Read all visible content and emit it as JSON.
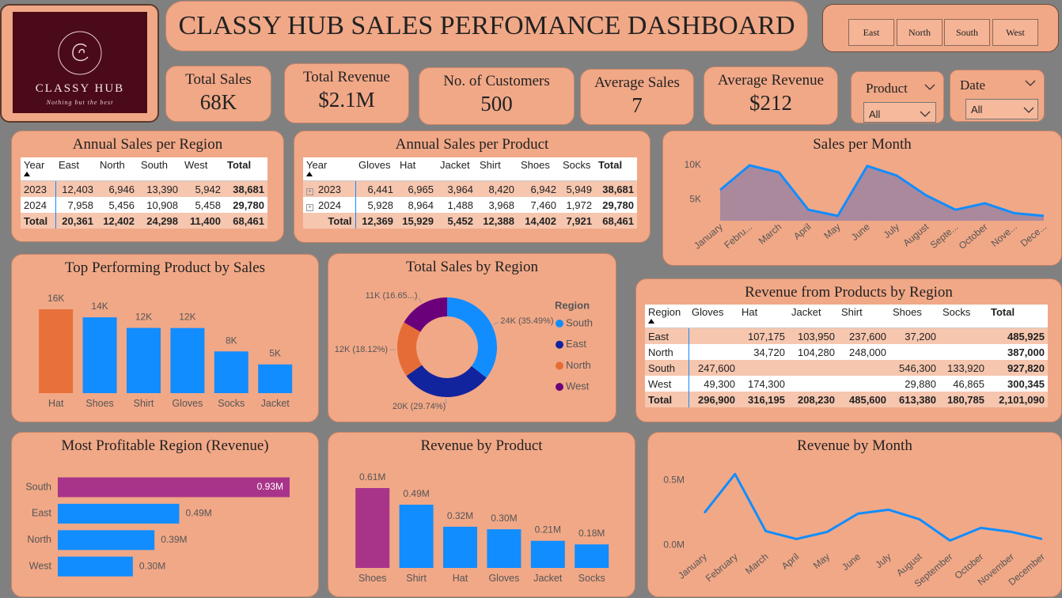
{
  "header": {
    "title": "CLASSY HUB SALES PERFOMANCE DASHBOARD",
    "logo_name": "CLASSY HUB",
    "logo_tagline": "Nothing but the best"
  },
  "region_buttons": [
    "East",
    "North",
    "South",
    "West"
  ],
  "kpis": [
    {
      "label": "Total Sales",
      "value": "68K"
    },
    {
      "label": "Total Revenue",
      "value": "$2.1M"
    },
    {
      "label": "No. of Customers",
      "value": "500"
    },
    {
      "label": "Average Sales",
      "value": "7"
    },
    {
      "label": "Average Revenue",
      "value": "$212"
    }
  ],
  "slicers": [
    {
      "label": "Product",
      "value": "All"
    },
    {
      "label": "Date",
      "value": "All"
    }
  ],
  "tables": [
    {
      "title": "Annual Sales per Region",
      "columns": [
        "Year",
        "East",
        "North",
        "South",
        "West",
        "Total"
      ],
      "rows": [
        [
          "2023",
          "12,403",
          "6,946",
          "13,390",
          "5,942",
          "38,681"
        ],
        [
          "2024",
          "7,958",
          "5,456",
          "10,908",
          "5,458",
          "29,780"
        ],
        [
          "Total",
          "20,361",
          "12,402",
          "24,298",
          "11,400",
          "68,461"
        ]
      ]
    },
    {
      "title": "Annual Sales per Product",
      "columns": [
        "Year",
        "Gloves",
        "Hat",
        "Jacket",
        "Shirt",
        "Shoes",
        "Socks",
        "Total"
      ],
      "rows": [
        [
          "2023",
          "6,441",
          "6,965",
          "3,964",
          "8,420",
          "6,942",
          "5,949",
          "38,681"
        ],
        [
          "2024",
          "5,928",
          "8,964",
          "1,488",
          "3,968",
          "7,460",
          "1,972",
          "29,780"
        ],
        [
          "Total",
          "12,369",
          "15,929",
          "5,452",
          "12,388",
          "14,402",
          "7,921",
          "68,461"
        ]
      ]
    },
    {
      "title": "Revenue from Products by Region",
      "columns": [
        "Region",
        "Gloves",
        "Hat",
        "Jacket",
        "Shirt",
        "Shoes",
        "Socks",
        "Total"
      ],
      "rows": [
        [
          "East",
          null,
          "107,175",
          "103,950",
          "237,600",
          "37,200",
          null,
          "485,925"
        ],
        [
          "North",
          null,
          "34,720",
          "104,280",
          "248,000",
          null,
          null,
          "387,000"
        ],
        [
          "South",
          "247,600",
          null,
          null,
          null,
          "546,300",
          "133,920",
          "927,820"
        ],
        [
          "West",
          "49,300",
          "174,300",
          null,
          null,
          "29,880",
          "46,865",
          "300,345"
        ],
        [
          "Total",
          "296,900",
          "316,195",
          "208,230",
          "485,600",
          "613,380",
          "180,785",
          "2,101,090"
        ]
      ]
    }
  ],
  "chart_data": [
    {
      "type": "area",
      "title": "Sales per Month",
      "categories": [
        "January",
        "Febru...",
        "March",
        "April",
        "May",
        "June",
        "July",
        "August",
        "Septe...",
        "October",
        "Nove...",
        "Dece..."
      ],
      "values": [
        6400,
        10000,
        8950,
        3500,
        2600,
        9900,
        8500,
        5600,
        3500,
        4450,
        3000,
        2600
      ],
      "color": "#118DFF",
      "ylim": [
        1900,
        11500
      ],
      "yticks": [
        {
          "value": 5000,
          "label": "5K"
        },
        {
          "value": 10000,
          "label": "10K"
        }
      ],
      "grid": false
    },
    {
      "type": "bar",
      "title": "Top Performing Product by Sales",
      "categories": [
        "Hat",
        "Shoes",
        "Shirt",
        "Gloves",
        "Socks",
        "Jacket"
      ],
      "values": [
        15.929,
        14.402,
        12.388,
        12.369,
        7.921,
        5.452
      ],
      "value_labels": [
        "16K",
        "14K",
        "12K",
        "12K",
        "8K",
        "5K"
      ],
      "colors": [
        "#E8703A",
        "#118DFF",
        "#118DFF",
        "#118DFF",
        "#118DFF",
        "#118DFF"
      ]
    },
    {
      "type": "donut",
      "title": "Total Sales by Region",
      "legend_title": "Region",
      "categories": [
        "South",
        "East",
        "North",
        "West"
      ],
      "values": [
        24.298,
        20.361,
        12.402,
        11.4
      ],
      "value_labels": [
        "24K (35.49%)",
        "20K (29.74%)",
        "12K (18.12%)",
        "11K (16.65...)"
      ],
      "colors": [
        "#118DFF",
        "#12239E",
        "#E66C37",
        "#6B007B"
      ]
    },
    {
      "type": "bar",
      "orientation": "horizontal",
      "title": "Most Profitable Region (Revenue)",
      "categories": [
        "South",
        "East",
        "North",
        "West"
      ],
      "values": [
        0.92782,
        0.485925,
        0.387,
        0.300345
      ],
      "value_labels": [
        "0.93M",
        "0.49M",
        "0.39M",
        "0.30M"
      ],
      "colors": [
        "#A8348A",
        "#118DFF",
        "#118DFF",
        "#118DFF"
      ]
    },
    {
      "type": "bar",
      "title": "Revenue by Product",
      "categories": [
        "Shoes",
        "Shirt",
        "Hat",
        "Gloves",
        "Jacket",
        "Socks"
      ],
      "values": [
        0.61338,
        0.4856,
        0.316195,
        0.2969,
        0.20823,
        0.180785
      ],
      "value_labels": [
        "0.61M",
        "0.49M",
        "0.32M",
        "0.30M",
        "0.21M",
        "0.18M"
      ],
      "colors": [
        "#A8348A",
        "#118DFF",
        "#118DFF",
        "#118DFF",
        "#118DFF",
        "#118DFF"
      ]
    },
    {
      "type": "line",
      "title": "Revenue by Month",
      "categories": [
        "January",
        "February",
        "March",
        "April",
        "May",
        "June",
        "July",
        "August",
        "September",
        "October",
        "November",
        "December"
      ],
      "values": [
        250000,
        549000,
        110000,
        49000,
        104000,
        244000,
        274000,
        201000,
        37000,
        134000,
        104000,
        49000
      ],
      "color": "#118DFF",
      "ylim": [
        -40000,
        630000
      ],
      "yticks": [
        {
          "value": 0,
          "label": "0.0M"
        },
        {
          "value": 500000,
          "label": "0.5M"
        }
      ],
      "grid": false
    }
  ]
}
